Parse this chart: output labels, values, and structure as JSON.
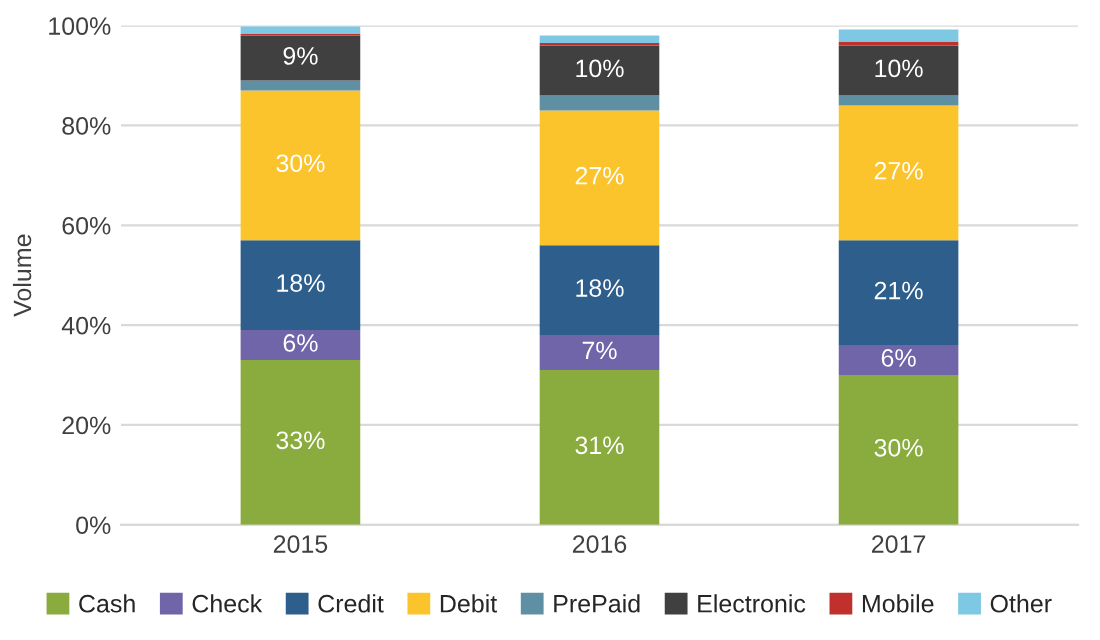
{
  "chart_data": {
    "type": "bar",
    "stacked": true,
    "ylabel": "Volume",
    "categories": [
      "2015",
      "2016",
      "2017"
    ],
    "series": [
      {
        "name": "Cash",
        "color": "#8aac3e",
        "values": [
          33,
          31,
          30
        ],
        "value_labels": [
          "33%",
          "31%",
          "30%"
        ]
      },
      {
        "name": "Check",
        "color": "#6f65a8",
        "values": [
          6,
          7,
          6
        ],
        "value_labels": [
          "6%",
          "7%",
          "6%"
        ]
      },
      {
        "name": "Credit",
        "color": "#2e5e8c",
        "values": [
          18,
          18,
          21
        ],
        "value_labels": [
          "18%",
          "18%",
          "21%"
        ]
      },
      {
        "name": "Debit",
        "color": "#fbc42c",
        "values": [
          30,
          27,
          27
        ],
        "value_labels": [
          "30%",
          "27%",
          "27%"
        ]
      },
      {
        "name": "PrePaid",
        "color": "#5f8fa3",
        "values": [
          2,
          3,
          2
        ]
      },
      {
        "name": "Electronic",
        "color": "#404040",
        "values": [
          9,
          10,
          10
        ],
        "value_labels": [
          "9%",
          "10%",
          "10%"
        ]
      },
      {
        "name": "Mobile",
        "color": "#c0302d",
        "values": [
          0.3,
          0.5,
          0.7
        ]
      },
      {
        "name": "Other",
        "color": "#7ec8e3",
        "values": [
          1.5,
          1.5,
          2.5
        ]
      }
    ],
    "ylim": [
      0,
      100
    ],
    "yticks": [
      {
        "value": 0,
        "label": "0%"
      },
      {
        "value": 20,
        "label": "20%"
      },
      {
        "value": 40,
        "label": "40%"
      },
      {
        "value": 60,
        "label": "60%"
      },
      {
        "value": 80,
        "label": "80%"
      },
      {
        "value": 100,
        "label": "100%"
      }
    ],
    "grid": "y",
    "legend": "bottom"
  }
}
